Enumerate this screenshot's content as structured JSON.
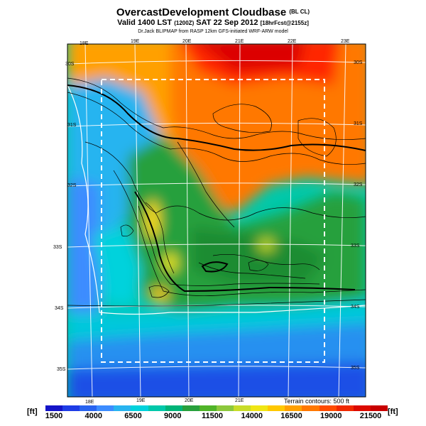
{
  "header": {
    "title": "OvercastDevelopment Cloudbase",
    "title_suffix": "(BL CL)",
    "valid": "Valid 1400 LST",
    "valid_utc": "(1200Z)",
    "date": "SAT 22 Sep 2012",
    "forecast": "[18hrFcst@2155z]",
    "credit": "Dr.Jack BLIPMAP from RASP 12km GFS-initiated WRF-ARW model"
  },
  "map": {
    "lon_labels_top": [
      "18E",
      "19E",
      "20E",
      "21E",
      "22E",
      "23E"
    ],
    "lon_labels_bottom": [
      "18E",
      "19E",
      "20E",
      "21E"
    ],
    "lat_labels_left": [
      "30S",
      "31S",
      "32S",
      "33S",
      "34S",
      "35S"
    ],
    "lat_labels_right": [
      "30S",
      "31S",
      "32S",
      "33S",
      "34S",
      "35S"
    ],
    "terrain_note": "Terrain contours: 500 ft"
  },
  "colorbar": {
    "unit": "[ft]",
    "labels": [
      "1500",
      "4000",
      "6500",
      "9000",
      "11500",
      "14000",
      "16500",
      "19000",
      "21500"
    ],
    "colors": [
      "#1414c8",
      "#1e3ce6",
      "#2864f0",
      "#3c8cff",
      "#28b4f0",
      "#00d2dc",
      "#00c8aa",
      "#00b478",
      "#28a03c",
      "#50b428",
      "#8cc83c",
      "#c8dc28",
      "#f0e614",
      "#ffc800",
      "#ffa000",
      "#ff7800",
      "#ff4b00",
      "#f02800",
      "#dc0a00",
      "#c80000"
    ]
  }
}
